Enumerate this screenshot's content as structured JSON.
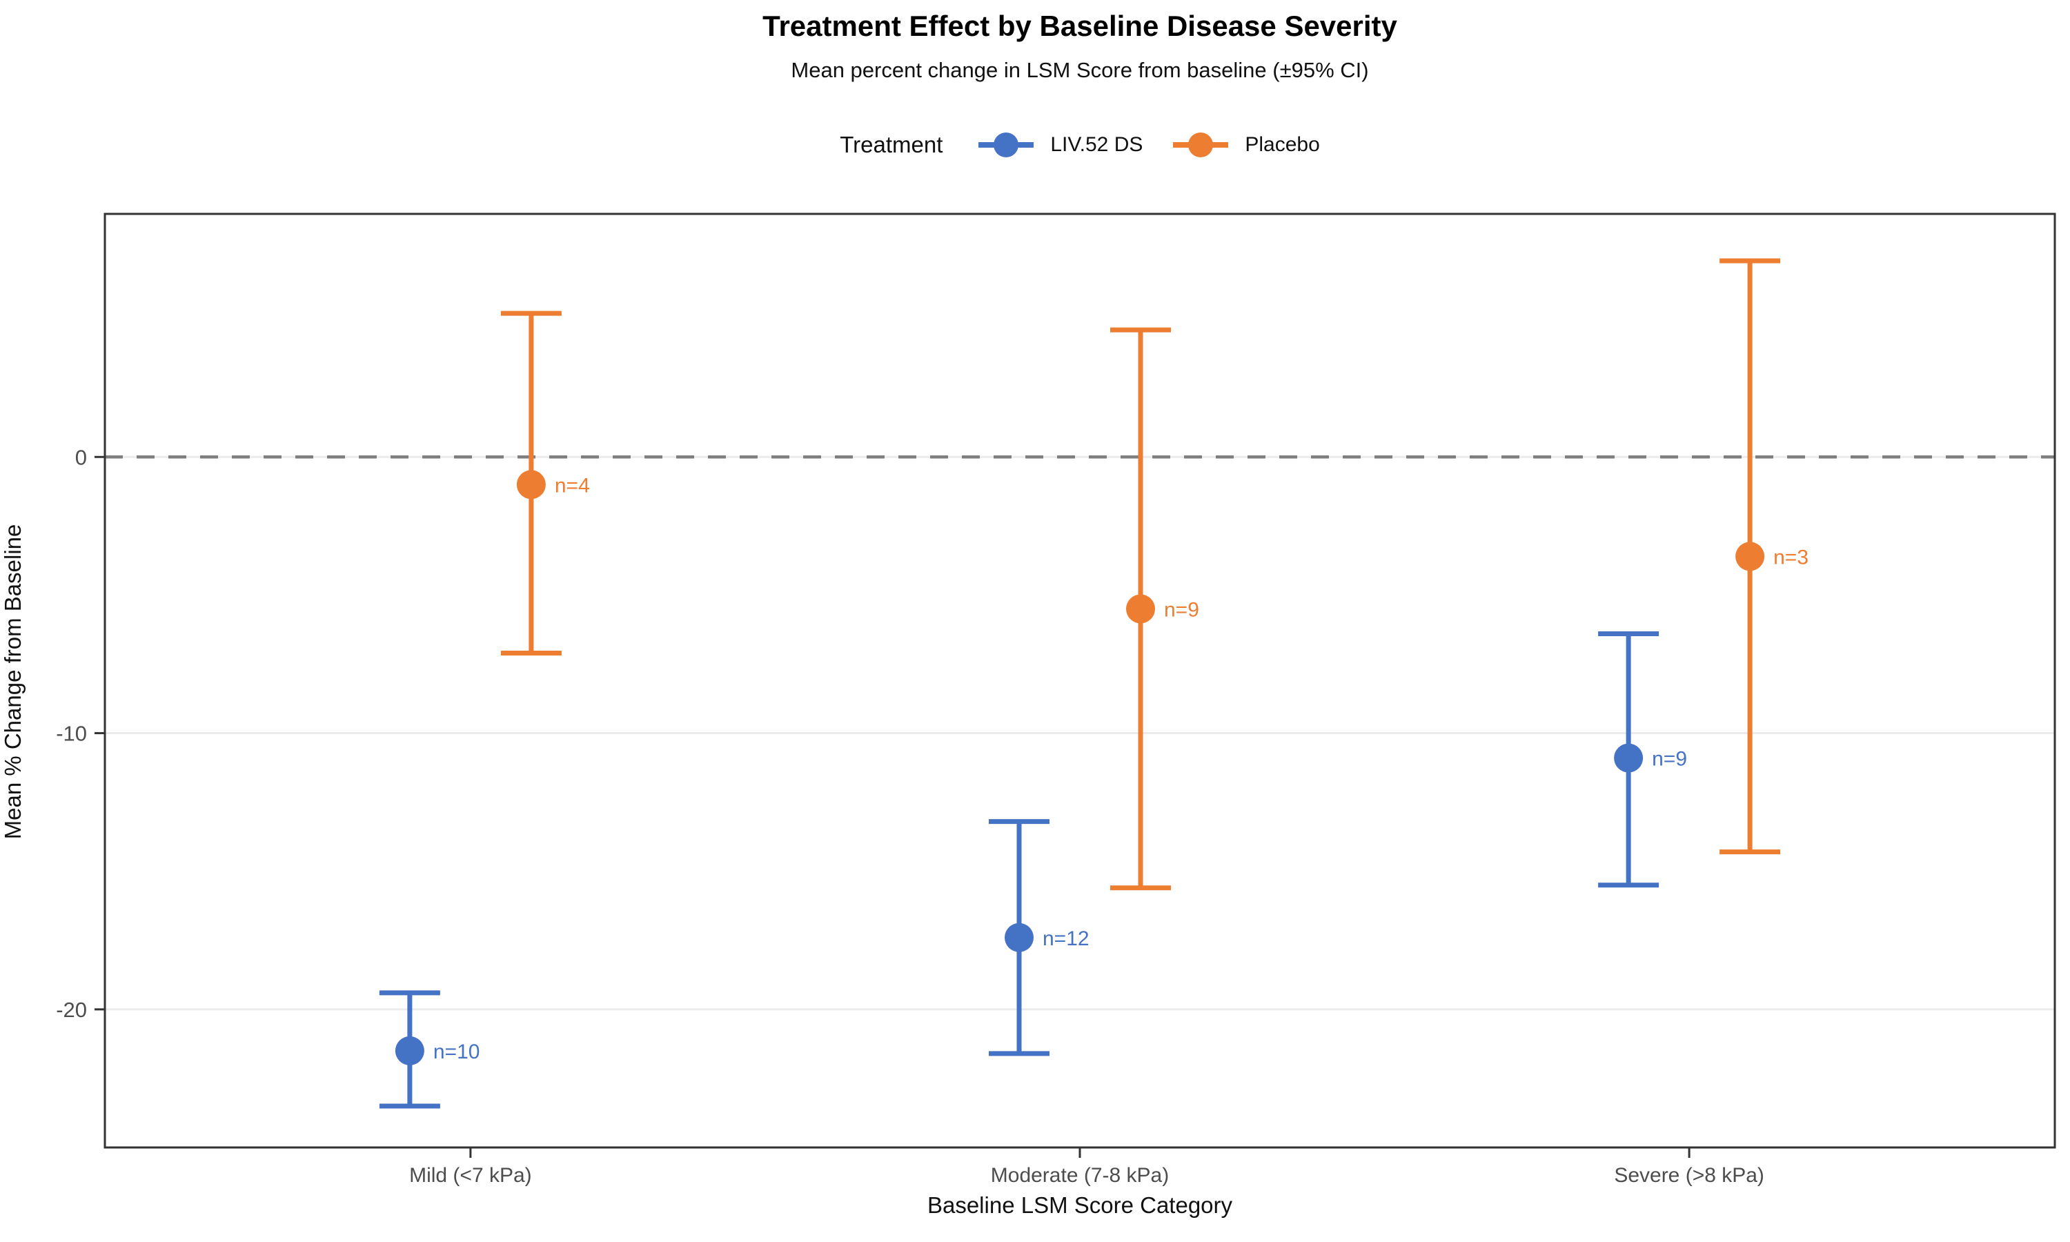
{
  "title": "Treatment Effect by Baseline Disease Severity",
  "subtitle": "Mean percent change in LSM Score from baseline (±95% CI)",
  "legend": {
    "title": "Treatment",
    "items": [
      {
        "label": "LIV.52 DS",
        "color": "#4472C4"
      },
      {
        "label": "Placebo",
        "color": "#ED7D31"
      }
    ]
  },
  "axes": {
    "xlabel": "Baseline LSM Score Category",
    "ylabel": "Mean % Change from Baseline"
  },
  "chart_data": {
    "type": "scatter",
    "subtype": "pointrange-errorbar-dodged",
    "title": "Treatment Effect by Baseline Disease Severity",
    "subtitle": "Mean percent change in LSM Score from baseline (±95% CI)",
    "xlabel": "Baseline LSM Score Category",
    "ylabel": "Mean % Change from Baseline",
    "categories": [
      "Mild (<7 kPa)",
      "Moderate (7-8 kPa)",
      "Severe (>8 kPa)"
    ],
    "series": [
      {
        "name": "LIV.52 DS",
        "color": "#4472C4",
        "means": [
          -21.5,
          -17.4,
          -10.9
        ],
        "ci_low": [
          -23.5,
          -21.6,
          -15.5
        ],
        "ci_high": [
          -19.4,
          -13.2,
          -6.4
        ],
        "n": [
          10,
          12,
          9
        ],
        "point_labels": [
          "n=10",
          "n=12",
          "n=9"
        ]
      },
      {
        "name": "Placebo",
        "color": "#ED7D31",
        "means": [
          -1.0,
          -5.5,
          -3.6
        ],
        "ci_low": [
          -7.1,
          -15.6,
          -14.3
        ],
        "ci_high": [
          5.2,
          4.6,
          7.1
        ],
        "n": [
          4,
          9,
          3
        ],
        "point_labels": [
          "n=4",
          "n=9",
          "n=3"
        ]
      }
    ],
    "yticks": [
      0,
      -10,
      -20
    ],
    "ylim": [
      -25,
      8.8
    ],
    "reference_line_y": 0,
    "grid": "horizontal-major",
    "legend_position": "top-center",
    "colors": {
      "grid": "#EBEBEB",
      "reference_dash": "#7F7F7F",
      "panel_border": "#333333",
      "tick_text": "#4D4D4D"
    }
  }
}
